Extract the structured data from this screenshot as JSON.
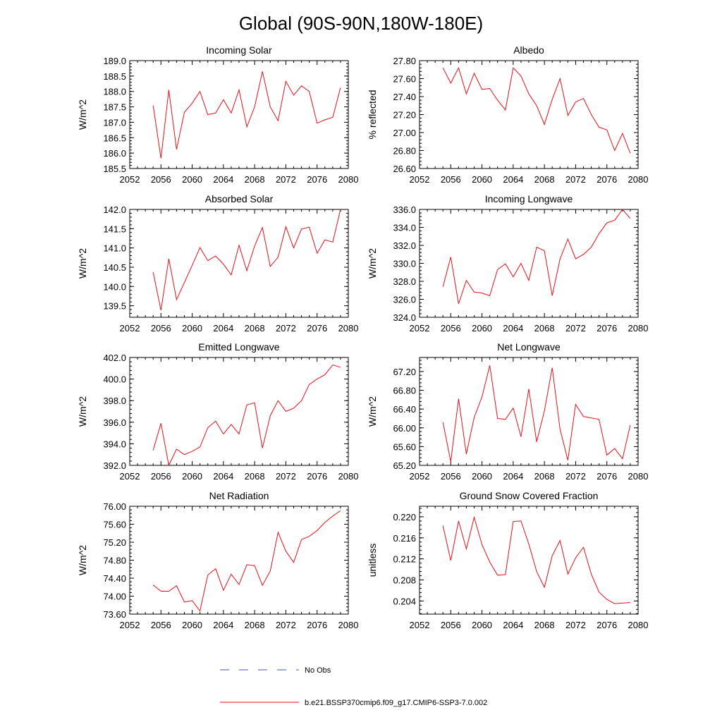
{
  "page_title": "Global (90S-90N,180W-180E)",
  "colors": {
    "model": "#e8101a",
    "obs": "#4a4fcf",
    "axis": "#000000"
  },
  "legend": {
    "obs_label": "No Obs",
    "model_label": "b.e21.BSSP370cmip6.f09_g17.CMIP6-SSP3-7.0.002"
  },
  "chart_data": [
    {
      "type": "line",
      "title": "Incoming Solar",
      "xlabel": "",
      "ylabel": "W/m^2",
      "xlim": [
        2052,
        2080
      ],
      "xticks": [
        2052,
        2056,
        2060,
        2064,
        2068,
        2072,
        2076,
        2080
      ],
      "ylim": [
        185.5,
        189.0
      ],
      "yticks": [
        "185.5",
        "186.0",
        "186.5",
        "187.0",
        "187.5",
        "188.0",
        "188.5",
        "189.0"
      ],
      "series": [
        {
          "name": "b.e21.BSSP370cmip6.f09_g17.CMIP6-SSP3-7.0.002",
          "x": [
            2055,
            2056,
            2057,
            2058,
            2059,
            2060,
            2061,
            2062,
            2063,
            2064,
            2065,
            2066,
            2067,
            2068,
            2069,
            2070,
            2071,
            2072,
            2073,
            2074,
            2075,
            2076,
            2077,
            2078,
            2079
          ],
          "values": [
            187.55,
            185.83,
            188.05,
            186.12,
            187.32,
            187.62,
            188.0,
            187.25,
            187.3,
            187.73,
            187.3,
            188.05,
            186.85,
            187.5,
            188.65,
            187.5,
            187.05,
            188.33,
            187.88,
            188.18,
            188.0,
            186.97,
            187.08,
            187.16,
            188.12
          ]
        }
      ]
    },
    {
      "type": "line",
      "title": "Albedo",
      "xlabel": "",
      "ylabel": "% reflected",
      "xlim": [
        2052,
        2080
      ],
      "xticks": [
        2052,
        2056,
        2060,
        2064,
        2068,
        2072,
        2076,
        2080
      ],
      "ylim": [
        26.6,
        27.8
      ],
      "yticks": [
        "26.60",
        "26.80",
        "27.00",
        "27.20",
        "27.40",
        "27.60",
        "27.80"
      ],
      "series": [
        {
          "name": "b.e21.BSSP370cmip6.f09_g17.CMIP6-SSP3-7.0.002",
          "x": [
            2055,
            2056,
            2057,
            2058,
            2059,
            2060,
            2061,
            2062,
            2063,
            2064,
            2065,
            2066,
            2067,
            2068,
            2069,
            2070,
            2071,
            2072,
            2073,
            2074,
            2075,
            2076,
            2077,
            2078,
            2079
          ],
          "values": [
            27.72,
            27.55,
            27.72,
            27.43,
            27.66,
            27.48,
            27.49,
            27.36,
            27.25,
            27.72,
            27.63,
            27.43,
            27.3,
            27.09,
            27.37,
            27.6,
            27.19,
            27.34,
            27.38,
            27.2,
            27.06,
            27.03,
            26.8,
            26.99,
            26.77
          ]
        }
      ]
    },
    {
      "type": "line",
      "title": "Absorbed Solar",
      "xlabel": "",
      "ylabel": "W/m^2",
      "xlim": [
        2052,
        2080
      ],
      "xticks": [
        2052,
        2056,
        2060,
        2064,
        2068,
        2072,
        2076,
        2080
      ],
      "ylim": [
        139.2,
        142.0
      ],
      "yticks": [
        "139.5",
        "140.0",
        "140.5",
        "141.0",
        "141.5",
        "142.0"
      ],
      "series": [
        {
          "name": "b.e21.BSSP370cmip6.f09_g17.CMIP6-SSP3-7.0.002",
          "x": [
            2055,
            2056,
            2057,
            2058,
            2059,
            2060,
            2061,
            2062,
            2063,
            2064,
            2065,
            2066,
            2067,
            2068,
            2069,
            2070,
            2071,
            2072,
            2073,
            2074,
            2075,
            2076,
            2077,
            2078,
            2079
          ],
          "values": [
            140.37,
            139.38,
            140.72,
            139.66,
            140.1,
            140.55,
            141.01,
            140.67,
            140.79,
            140.58,
            140.3,
            141.07,
            140.41,
            141.05,
            141.53,
            140.52,
            140.76,
            141.55,
            141.0,
            141.49,
            141.54,
            140.86,
            141.21,
            141.15,
            142.0
          ]
        }
      ]
    },
    {
      "type": "line",
      "title": "Incoming Longwave",
      "xlabel": "",
      "ylabel": "W/m^2",
      "xlim": [
        2052,
        2080
      ],
      "xticks": [
        2052,
        2056,
        2060,
        2064,
        2068,
        2072,
        2076,
        2080
      ],
      "ylim": [
        324.0,
        336.0
      ],
      "yticks": [
        "324.0",
        "326.0",
        "328.0",
        "330.0",
        "332.0",
        "334.0",
        "336.0"
      ],
      "series": [
        {
          "name": "b.e21.BSSP370cmip6.f09_g17.CMIP6-SSP3-7.0.002",
          "x": [
            2055,
            2056,
            2057,
            2058,
            2059,
            2060,
            2061,
            2062,
            2063,
            2064,
            2065,
            2066,
            2067,
            2068,
            2069,
            2070,
            2071,
            2072,
            2073,
            2074,
            2075,
            2076,
            2077,
            2078,
            2079
          ],
          "values": [
            327.4,
            330.7,
            325.5,
            328.1,
            326.8,
            326.7,
            326.4,
            329.3,
            329.95,
            328.5,
            330.0,
            328.1,
            331.8,
            331.4,
            326.4,
            330.5,
            332.7,
            330.5,
            331.0,
            331.8,
            333.3,
            334.5,
            334.8,
            336.0,
            335.0
          ]
        }
      ]
    },
    {
      "type": "line",
      "title": "Emitted Longwave",
      "xlabel": "",
      "ylabel": "W/m^2",
      "xlim": [
        2052,
        2080
      ],
      "xticks": [
        2052,
        2056,
        2060,
        2064,
        2068,
        2072,
        2076,
        2080
      ],
      "ylim": [
        392.0,
        402.0
      ],
      "yticks": [
        "392.0",
        "394.0",
        "396.0",
        "398.0",
        "400.0",
        "402.0"
      ],
      "series": [
        {
          "name": "b.e21.BSSP370cmip6.f09_g17.CMIP6-SSP3-7.0.002",
          "x": [
            2055,
            2056,
            2057,
            2058,
            2059,
            2060,
            2061,
            2062,
            2063,
            2064,
            2065,
            2066,
            2067,
            2068,
            2069,
            2070,
            2071,
            2072,
            2073,
            2074,
            2075,
            2076,
            2077,
            2078,
            2079
          ],
          "values": [
            393.4,
            395.9,
            392.0,
            393.5,
            393.0,
            393.3,
            393.7,
            395.5,
            396.1,
            394.9,
            395.8,
            394.9,
            397.6,
            397.8,
            393.6,
            396.6,
            398.0,
            397.0,
            397.3,
            398.0,
            399.5,
            400.0,
            400.4,
            401.3,
            401.1
          ]
        }
      ]
    },
    {
      "type": "line",
      "title": "Net Longwave",
      "xlabel": "",
      "ylabel": "W/m^2",
      "xlim": [
        2052,
        2080
      ],
      "xticks": [
        2052,
        2056,
        2060,
        2064,
        2068,
        2072,
        2076,
        2080
      ],
      "ylim": [
        65.2,
        67.5
      ],
      "yticks": [
        "65.20",
        "65.60",
        "66.00",
        "66.40",
        "66.80",
        "67.20"
      ],
      "series": [
        {
          "name": "b.e21.BSSP370cmip6.f09_g17.CMIP6-SSP3-7.0.002",
          "x": [
            2055,
            2056,
            2057,
            2058,
            2059,
            2060,
            2061,
            2062,
            2063,
            2064,
            2065,
            2066,
            2067,
            2068,
            2069,
            2070,
            2071,
            2072,
            2073,
            2074,
            2075,
            2076,
            2077,
            2078,
            2079
          ],
          "values": [
            66.12,
            65.28,
            66.62,
            65.44,
            66.22,
            66.66,
            67.33,
            66.2,
            66.18,
            66.42,
            65.81,
            66.83,
            65.7,
            66.36,
            67.28,
            65.97,
            65.31,
            66.5,
            66.24,
            66.21,
            66.18,
            65.42,
            65.56,
            65.34,
            66.06
          ]
        }
      ]
    },
    {
      "type": "line",
      "title": "Net Radiation",
      "xlabel": "",
      "ylabel": "W/m^2",
      "xlim": [
        2052,
        2080
      ],
      "xticks": [
        2052,
        2056,
        2060,
        2064,
        2068,
        2072,
        2076,
        2080
      ],
      "ylim": [
        73.6,
        76.0
      ],
      "yticks": [
        "73.60",
        "74.00",
        "74.40",
        "74.80",
        "75.20",
        "75.60",
        "76.00"
      ],
      "series": [
        {
          "name": "b.e21.BSSP370cmip6.f09_g17.CMIP6-SSP3-7.0.002",
          "x": [
            2055,
            2056,
            2057,
            2058,
            2059,
            2060,
            2061,
            2062,
            2063,
            2064,
            2065,
            2066,
            2067,
            2068,
            2069,
            2070,
            2071,
            2072,
            2073,
            2074,
            2075,
            2076,
            2077,
            2078,
            2079
          ],
          "values": [
            74.25,
            74.11,
            74.11,
            74.23,
            73.87,
            73.9,
            73.67,
            74.47,
            74.61,
            74.13,
            74.49,
            74.26,
            74.7,
            74.68,
            74.24,
            74.56,
            75.42,
            75.0,
            74.75,
            75.26,
            75.33,
            75.46,
            75.64,
            75.78,
            75.9
          ]
        }
      ]
    },
    {
      "type": "line",
      "title": "Ground Snow Covered Fraction",
      "xlabel": "",
      "ylabel": "unitless",
      "xlim": [
        2052,
        2080
      ],
      "xticks": [
        2052,
        2056,
        2060,
        2064,
        2068,
        2072,
        2076,
        2080
      ],
      "ylim": [
        0.2015,
        0.222
      ],
      "yticks": [
        "0.204",
        "0.208",
        "0.212",
        "0.216",
        "0.220"
      ],
      "series": [
        {
          "name": "b.e21.BSSP370cmip6.f09_g17.CMIP6-SSP3-7.0.002",
          "x": [
            2055,
            2056,
            2057,
            2058,
            2059,
            2060,
            2061,
            2062,
            2063,
            2064,
            2065,
            2066,
            2067,
            2068,
            2069,
            2070,
            2071,
            2072,
            2073,
            2074,
            2075,
            2076,
            2077,
            2078,
            2079
          ],
          "values": [
            0.2183,
            0.2117,
            0.2192,
            0.2139,
            0.2199,
            0.2147,
            0.2114,
            0.2089,
            0.209,
            0.2191,
            0.2192,
            0.2148,
            0.2096,
            0.2066,
            0.2126,
            0.2155,
            0.2091,
            0.2122,
            0.2142,
            0.2091,
            0.2057,
            0.2043,
            0.2035,
            0.2036,
            0.2037
          ]
        }
      ]
    }
  ]
}
